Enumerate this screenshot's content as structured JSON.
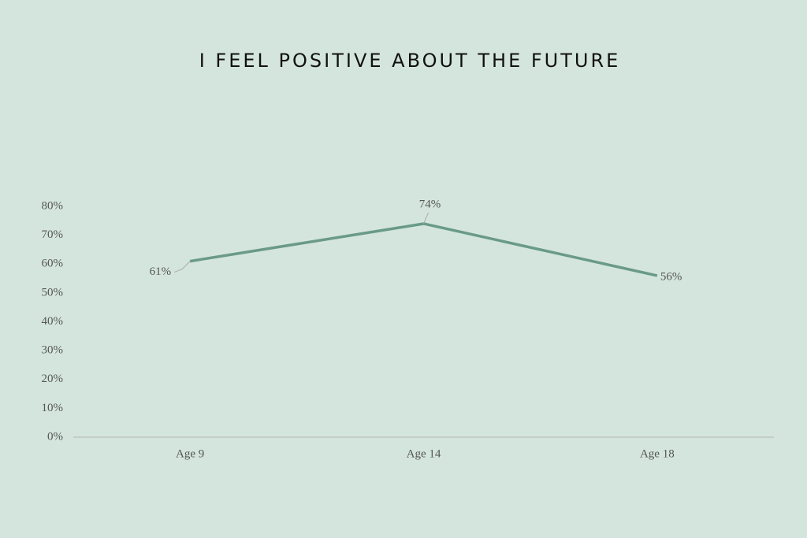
{
  "chart_data": {
    "type": "line",
    "title": "I FEEL POSITIVE ABOUT THE FUTURE",
    "categories": [
      "Age 9",
      "Age 14",
      "Age 18"
    ],
    "series": [
      {
        "color": "#6a9a88",
        "values": [
          61,
          74,
          56
        ],
        "value_labels": [
          "61%",
          "74%",
          "56%"
        ]
      }
    ],
    "ylim": [
      0,
      80
    ],
    "yticks": [
      {
        "value": 0,
        "label": "0%"
      },
      {
        "value": 10,
        "label": "10%"
      },
      {
        "value": 20,
        "label": "20%"
      },
      {
        "value": 30,
        "label": "30%"
      },
      {
        "value": 40,
        "label": "40%"
      },
      {
        "value": 50,
        "label": "50%"
      },
      {
        "value": 60,
        "label": "60%"
      },
      {
        "value": 70,
        "label": "70%"
      },
      {
        "value": 80,
        "label": "80%"
      }
    ],
    "grid": false
  }
}
